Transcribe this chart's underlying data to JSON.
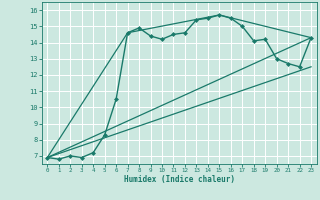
{
  "title": "",
  "xlabel": "Humidex (Indice chaleur)",
  "bg_color": "#cce8e0",
  "grid_color": "#ffffff",
  "line_color": "#1a7a6a",
  "xlim": [
    -0.5,
    23.5
  ],
  "ylim": [
    6.5,
    16.5
  ],
  "xticks": [
    0,
    1,
    2,
    3,
    4,
    5,
    6,
    7,
    8,
    9,
    10,
    11,
    12,
    13,
    14,
    15,
    16,
    17,
    18,
    19,
    20,
    21,
    22,
    23
  ],
  "yticks": [
    7,
    8,
    9,
    10,
    11,
    12,
    13,
    14,
    15,
    16
  ],
  "series": [
    {
      "x": [
        0,
        1,
        2,
        3,
        4,
        5,
        6,
        7,
        8,
        9,
        10,
        11,
        12,
        13,
        14,
        15,
        16,
        17,
        18,
        19,
        20,
        21,
        22,
        23
      ],
      "y": [
        6.9,
        6.8,
        7.0,
        6.9,
        7.2,
        8.3,
        10.5,
        14.6,
        14.9,
        14.4,
        14.2,
        14.5,
        14.6,
        15.4,
        15.5,
        15.7,
        15.5,
        15.0,
        14.1,
        14.2,
        13.0,
        12.7,
        12.5,
        14.3
      ],
      "marker": "D",
      "marker_size": 2.0,
      "linewidth": 1.0
    },
    {
      "x": [
        0,
        23
      ],
      "y": [
        6.9,
        14.3
      ],
      "linewidth": 0.9
    },
    {
      "x": [
        0,
        7,
        15,
        23
      ],
      "y": [
        6.9,
        14.6,
        15.7,
        14.3
      ],
      "linewidth": 0.9
    },
    {
      "x": [
        0,
        23
      ],
      "y": [
        6.9,
        12.5
      ],
      "linewidth": 0.9
    }
  ]
}
